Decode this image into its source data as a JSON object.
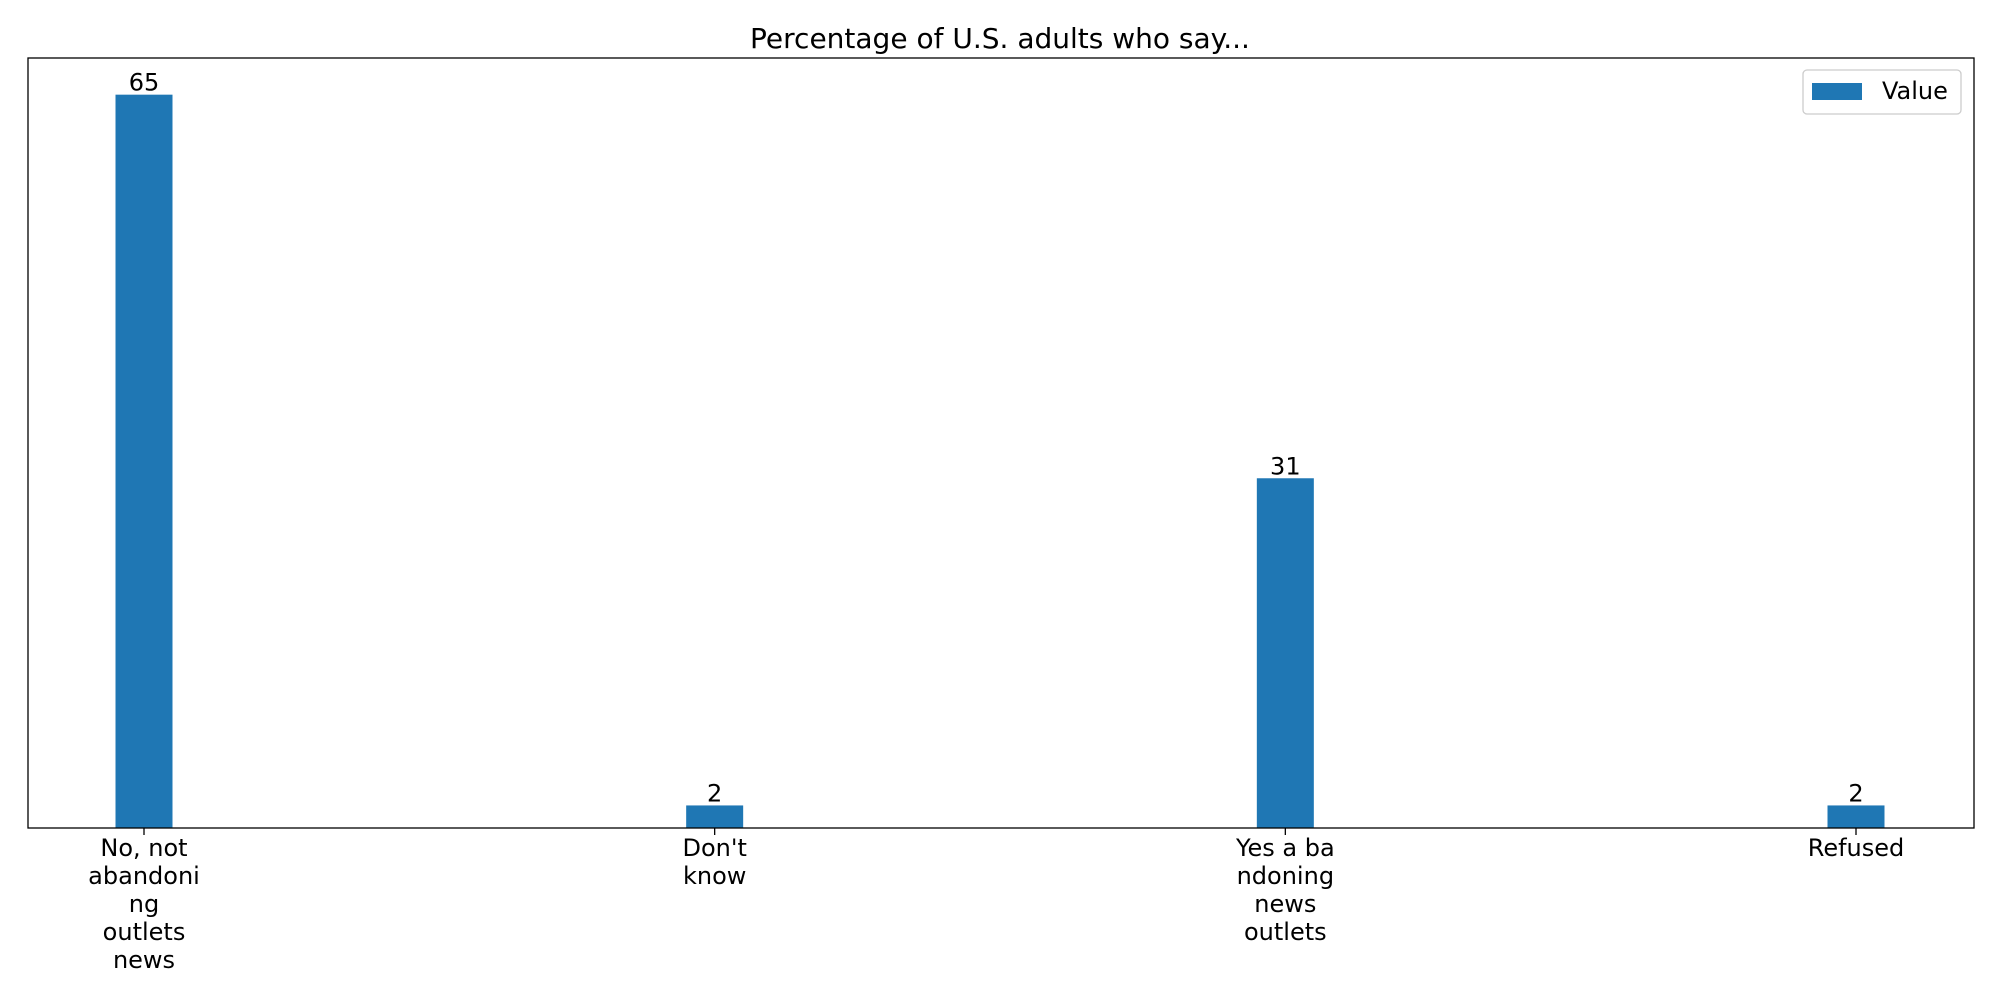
{
  "chart_data": {
    "type": "bar",
    "title": "Percentage of U.S. adults who say...",
    "xlabel": "",
    "ylabel": "",
    "categories": [
      [
        "No, not",
        "abandoni",
        "ng",
        "outlets",
        "news"
      ],
      [
        "Don't",
        "know"
      ],
      [
        "Yes a ba",
        "ndoning",
        "news",
        "outlets"
      ],
      [
        "Refused"
      ]
    ],
    "series": [
      {
        "name": "Value",
        "values": [
          65,
          2,
          31,
          2
        ],
        "color": "#1f77b4"
      }
    ],
    "ylim": [
      0,
      68.25
    ],
    "y_ticks_visible": false,
    "grid": false,
    "legend_position": "top-right"
  }
}
